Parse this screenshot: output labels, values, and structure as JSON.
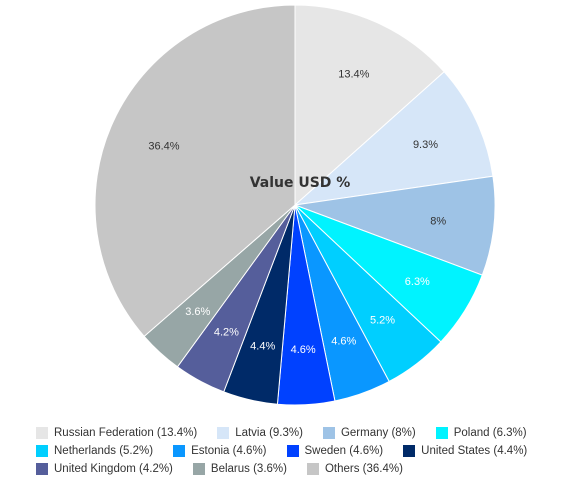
{
  "chart_data": {
    "type": "pie",
    "title": "Value USD %",
    "slices": [
      {
        "label": "Russian Federation",
        "value": 13.4,
        "display": "13.4%",
        "color": "#e6e6e6",
        "label_color": "#333333"
      },
      {
        "label": "Latvia",
        "value": 9.3,
        "display": "9.3%",
        "color": "#d6e6f8",
        "label_color": "#333333"
      },
      {
        "label": "Germany",
        "value": 8,
        "display": "8%",
        "color": "#9ec3e6",
        "label_color": "#333333"
      },
      {
        "label": "Poland",
        "value": 6.3,
        "display": "6.3%",
        "color": "#00f3ff",
        "label_color": "#ffffff"
      },
      {
        "label": "Netherlands",
        "value": 5.2,
        "display": "5.2%",
        "color": "#00cfff",
        "label_color": "#ffffff"
      },
      {
        "label": "Estonia",
        "value": 4.6,
        "display": "4.6%",
        "color": "#0a97ff",
        "label_color": "#ffffff"
      },
      {
        "label": "Sweden",
        "value": 4.6,
        "display": "4.6%",
        "color": "#0041ff",
        "label_color": "#ffffff"
      },
      {
        "label": "United States",
        "value": 4.4,
        "display": "4.4%",
        "color": "#002a68",
        "label_color": "#ffffff"
      },
      {
        "label": "United Kingdom",
        "value": 4.2,
        "display": "4.2%",
        "color": "#555e9b",
        "label_color": "#ffffff"
      },
      {
        "label": "Belarus",
        "value": 3.6,
        "display": "3.6%",
        "color": "#97a6a6",
        "label_color": "#ffffff"
      },
      {
        "label": "Others",
        "value": 36.4,
        "display": "36.4%",
        "color": "#c6c6c6",
        "label_color": "#333333"
      }
    ],
    "legend": {
      "position": "bottom",
      "rows": [
        [
          "Russian Federation (13.4%)",
          "Latvia (9.3%)",
          "Germany (8%)",
          "Poland (6.3%)"
        ],
        [
          "Netherlands (5.2%)",
          "Estonia (4.6%)",
          "Sweden (4.6%)",
          "United States (4.4%)"
        ],
        [
          "United Kingdom (4.2%)",
          "Belarus (3.6%)",
          "Others (36.4%)"
        ]
      ]
    }
  }
}
